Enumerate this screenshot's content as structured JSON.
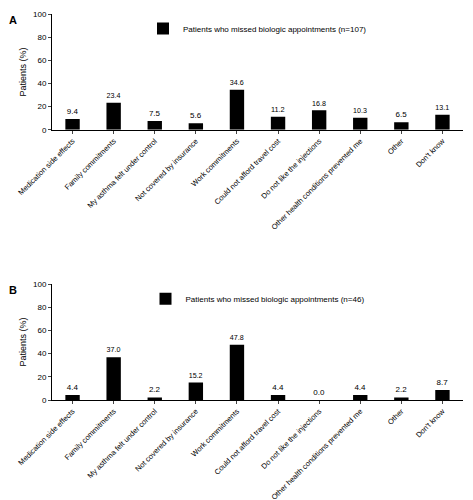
{
  "chart_data": [
    {
      "type": "bar",
      "title": "A",
      "categories": [
        "Medication side effects",
        "Family commitments",
        "My asthma felt under control",
        "Not covered by insurance",
        "Work commitments",
        "Could not afford travel cost",
        "Do not like the injections",
        "Other health conditions prevented me",
        "Other",
        "Don't know"
      ],
      "series": [
        {
          "name": "Patients who missed biologic appointments (n=107)",
          "color": "#000000",
          "values": [
            9.4,
            23.4,
            7.5,
            5.6,
            34.6,
            11.2,
            16.8,
            10.3,
            6.5,
            13.1
          ],
          "value_labels": [
            "9.4",
            "23.4",
            "7.5",
            "5.6",
            "34.6",
            "11.2",
            "16.8",
            "10.3",
            "6.5",
            "13.1"
          ]
        }
      ],
      "y_label": "Patients (%)",
      "ylim": [
        0,
        100
      ],
      "yticks": [
        0,
        20,
        40,
        60,
        80,
        100
      ],
      "grid": false,
      "legend": "top",
      "data_labels": true
    },
    {
      "type": "bar",
      "title": "B",
      "categories": [
        "Medication side effects",
        "Family commitments",
        "My asthma felt under control",
        "Not covered by insurance",
        "Work commitments",
        "Could not afford travel cost",
        "Do not like the injections",
        "Other health conditions prevented me",
        "Other",
        "Don't know"
      ],
      "series": [
        {
          "name": "Patients who missed biologic appointments (n=46)",
          "color": "#000000",
          "values": [
            4.4,
            37.0,
            2.2,
            15.2,
            47.8,
            4.4,
            0.0,
            4.4,
            2.2,
            8.7
          ],
          "value_labels": [
            "4.4",
            "37.0",
            "2.2",
            "15.2",
            "47.8",
            "4.4",
            "0.0",
            "4.4",
            "2.2",
            "8.7"
          ]
        }
      ],
      "y_label": "Patients (%)",
      "ylim": [
        0,
        100
      ],
      "yticks": [
        0,
        20,
        40,
        60,
        80,
        100
      ],
      "grid": false,
      "legend": "top",
      "data_labels": true
    }
  ]
}
